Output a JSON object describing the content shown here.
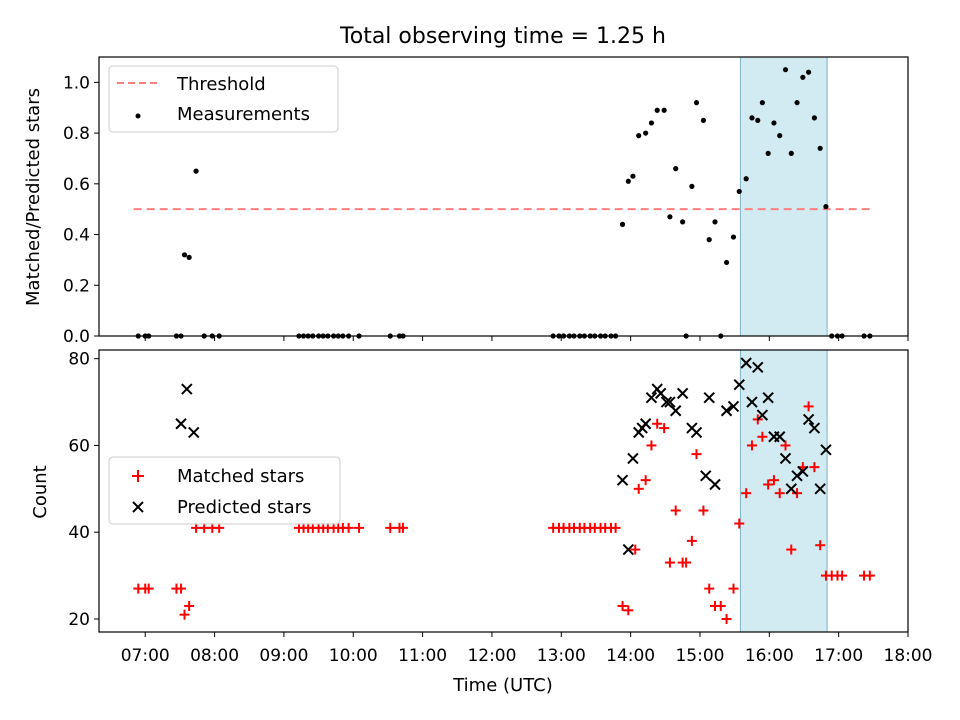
{
  "figure_title": "Total observing time = 1.25 h",
  "colors": {
    "threshold": "#ff7f7f",
    "measurements": "#000000",
    "matched": "#ff0000",
    "predicted": "#000000",
    "shade": "#add8e6"
  },
  "chart_data": [
    {
      "type": "scatter",
      "ylabel": "Matched/Predicted stars",
      "xlim": [
        "06:20",
        "18:00"
      ],
      "ylim": [
        0,
        1.1
      ],
      "yticks": [
        "0.0",
        "0.2",
        "0.4",
        "0.6",
        "0.8",
        "1.0"
      ],
      "ytick_values": [
        0,
        0.2,
        0.4,
        0.6,
        0.8,
        1.0
      ],
      "shaded_region": [
        "15:35",
        "16:50"
      ],
      "legend": {
        "placement": "top-left",
        "entries": [
          "Threshold",
          "Measurements"
        ]
      },
      "threshold": {
        "name": "Threshold",
        "value": 0.5,
        "x": [
          "06:50",
          "17:30"
        ]
      },
      "series": [
        {
          "name": "Measurements",
          "points": [
            [
              "06:54",
              0
            ],
            [
              "07:00",
              0
            ],
            [
              "07:03",
              0
            ],
            [
              "07:27",
              0
            ],
            [
              "07:31",
              0
            ],
            [
              "07:34",
              0.32
            ],
            [
              "07:38",
              0.31
            ],
            [
              "07:44",
              0.65
            ],
            [
              "07:51",
              0
            ],
            [
              "07:58",
              0
            ],
            [
              "08:04",
              0
            ],
            [
              "09:13",
              0
            ],
            [
              "09:17",
              0
            ],
            [
              "09:21",
              0
            ],
            [
              "09:25",
              0
            ],
            [
              "09:30",
              0
            ],
            [
              "09:34",
              0
            ],
            [
              "09:38",
              0
            ],
            [
              "09:43",
              0
            ],
            [
              "09:47",
              0
            ],
            [
              "09:51",
              0
            ],
            [
              "09:56",
              0
            ],
            [
              "10:05",
              0
            ],
            [
              "10:32",
              0
            ],
            [
              "10:40",
              0
            ],
            [
              "10:43",
              0
            ],
            [
              "12:53",
              0
            ],
            [
              "12:58",
              0
            ],
            [
              "13:02",
              0
            ],
            [
              "13:07",
              0
            ],
            [
              "13:11",
              0
            ],
            [
              "13:16",
              0
            ],
            [
              "13:20",
              0
            ],
            [
              "13:25",
              0
            ],
            [
              "13:29",
              0
            ],
            [
              "13:34",
              0
            ],
            [
              "13:38",
              0
            ],
            [
              "13:43",
              0
            ],
            [
              "13:47",
              0
            ],
            [
              "13:53",
              0.44
            ],
            [
              "13:58",
              0.61
            ],
            [
              "14:02",
              0.63
            ],
            [
              "14:07",
              0.79
            ],
            [
              "14:13",
              0.8
            ],
            [
              "14:18",
              0.84
            ],
            [
              "14:23",
              0.89
            ],
            [
              "14:29",
              0.89
            ],
            [
              "14:34",
              0.47
            ],
            [
              "14:39",
              0.66
            ],
            [
              "14:45",
              0.45
            ],
            [
              "14:48",
              0
            ],
            [
              "14:53",
              0.59
            ],
            [
              "14:57",
              0.92
            ],
            [
              "15:03",
              0.85
            ],
            [
              "15:08",
              0.38
            ],
            [
              "15:13",
              0.45
            ],
            [
              "15:18",
              0
            ],
            [
              "15:23",
              0.29
            ],
            [
              "15:29",
              0.39
            ],
            [
              "15:34",
              0.57
            ],
            [
              "15:40",
              0.62
            ],
            [
              "15:45",
              0.86
            ],
            [
              "15:50",
              0.85
            ],
            [
              "15:54",
              0.92
            ],
            [
              "15:59",
              0.72
            ],
            [
              "16:04",
              0.84
            ],
            [
              "16:09",
              0.79
            ],
            [
              "16:14",
              1.05
            ],
            [
              "16:19",
              0.72
            ],
            [
              "16:24",
              0.92
            ],
            [
              "16:29",
              1.02
            ],
            [
              "16:34",
              1.04
            ],
            [
              "16:39",
              0.86
            ],
            [
              "16:44",
              0.74
            ],
            [
              "16:49",
              0.51
            ],
            [
              "16:54",
              0
            ],
            [
              "16:59",
              0
            ],
            [
              "17:03",
              0
            ],
            [
              "17:22",
              0
            ],
            [
              "17:27",
              0
            ]
          ]
        }
      ]
    },
    {
      "type": "scatter",
      "title": "",
      "xlabel": "Time (UTC)",
      "ylabel": "Count",
      "xlim": [
        "06:20",
        "18:00"
      ],
      "ylim": [
        17,
        82
      ],
      "xticks": [
        "07:00",
        "08:00",
        "09:00",
        "10:00",
        "11:00",
        "12:00",
        "13:00",
        "14:00",
        "15:00",
        "16:00",
        "17:00",
        "18:00"
      ],
      "yticks": [
        "20",
        "40",
        "60",
        "80"
      ],
      "ytick_values": [
        20,
        40,
        60,
        80
      ],
      "shaded_region": [
        "15:35",
        "16:50"
      ],
      "legend": {
        "placement": "center-left",
        "entries": [
          "Matched stars",
          "Predicted stars"
        ]
      },
      "series": [
        {
          "name": "Matched stars",
          "marker": "plus",
          "points": [
            [
              "06:54",
              27
            ],
            [
              "07:00",
              27
            ],
            [
              "07:03",
              27
            ],
            [
              "07:27",
              27
            ],
            [
              "07:31",
              27
            ],
            [
              "07:34",
              21
            ],
            [
              "07:38",
              23
            ],
            [
              "07:44",
              41
            ],
            [
              "07:51",
              41
            ],
            [
              "07:58",
              41
            ],
            [
              "08:04",
              41
            ],
            [
              "09:13",
              41
            ],
            [
              "09:17",
              41
            ],
            [
              "09:21",
              41
            ],
            [
              "09:25",
              41
            ],
            [
              "09:30",
              41
            ],
            [
              "09:34",
              41
            ],
            [
              "09:38",
              41
            ],
            [
              "09:43",
              41
            ],
            [
              "09:47",
              41
            ],
            [
              "09:51",
              41
            ],
            [
              "09:56",
              41
            ],
            [
              "10:05",
              41
            ],
            [
              "10:32",
              41
            ],
            [
              "10:40",
              41
            ],
            [
              "10:43",
              41
            ],
            [
              "12:53",
              41
            ],
            [
              "12:58",
              41
            ],
            [
              "13:02",
              41
            ],
            [
              "13:07",
              41
            ],
            [
              "13:11",
              41
            ],
            [
              "13:16",
              41
            ],
            [
              "13:20",
              41
            ],
            [
              "13:25",
              41
            ],
            [
              "13:29",
              41
            ],
            [
              "13:34",
              41
            ],
            [
              "13:38",
              41
            ],
            [
              "13:43",
              41
            ],
            [
              "13:47",
              41
            ],
            [
              "13:53",
              23
            ],
            [
              "13:58",
              22
            ],
            [
              "14:04",
              36
            ],
            [
              "14:07",
              50
            ],
            [
              "14:13",
              52
            ],
            [
              "14:18",
              60
            ],
            [
              "14:23",
              65
            ],
            [
              "14:29",
              64
            ],
            [
              "14:34",
              33
            ],
            [
              "14:39",
              45
            ],
            [
              "14:45",
              33
            ],
            [
              "14:48",
              33
            ],
            [
              "14:53",
              38
            ],
            [
              "14:57",
              58
            ],
            [
              "15:03",
              45
            ],
            [
              "15:08",
              27
            ],
            [
              "15:13",
              23
            ],
            [
              "15:18",
              23
            ],
            [
              "15:23",
              20
            ],
            [
              "15:29",
              27
            ],
            [
              "15:34",
              42
            ],
            [
              "15:40",
              49
            ],
            [
              "15:45",
              60
            ],
            [
              "15:50",
              66
            ],
            [
              "15:54",
              62
            ],
            [
              "15:59",
              51
            ],
            [
              "16:04",
              52
            ],
            [
              "16:09",
              49
            ],
            [
              "16:14",
              60
            ],
            [
              "16:19",
              36
            ],
            [
              "16:24",
              49
            ],
            [
              "16:29",
              55
            ],
            [
              "16:34",
              69
            ],
            [
              "16:39",
              55
            ],
            [
              "16:44",
              37
            ],
            [
              "16:49",
              30
            ],
            [
              "16:54",
              30
            ],
            [
              "16:59",
              30
            ],
            [
              "17:03",
              30
            ],
            [
              "17:22",
              30
            ],
            [
              "17:27",
              30
            ]
          ]
        },
        {
          "name": "Predicted stars",
          "marker": "x",
          "points": [
            [
              "07:31",
              65
            ],
            [
              "07:36",
              73
            ],
            [
              "07:42",
              63
            ],
            [
              "13:53",
              52
            ],
            [
              "13:58",
              36
            ],
            [
              "14:02",
              57
            ],
            [
              "14:07",
              63
            ],
            [
              "14:10",
              64
            ],
            [
              "14:13",
              65
            ],
            [
              "14:18",
              71
            ],
            [
              "14:23",
              73
            ],
            [
              "14:26",
              72
            ],
            [
              "14:31",
              70
            ],
            [
              "14:34",
              70
            ],
            [
              "14:39",
              68
            ],
            [
              "14:45",
              72
            ],
            [
              "14:53",
              64
            ],
            [
              "14:57",
              63
            ],
            [
              "15:05",
              53
            ],
            [
              "15:08",
              71
            ],
            [
              "15:13",
              51
            ],
            [
              "15:23",
              68
            ],
            [
              "15:29",
              69
            ],
            [
              "15:34",
              74
            ],
            [
              "15:40",
              79
            ],
            [
              "15:45",
              70
            ],
            [
              "15:50",
              78
            ],
            [
              "15:54",
              67
            ],
            [
              "15:59",
              71
            ],
            [
              "16:04",
              62
            ],
            [
              "16:09",
              62
            ],
            [
              "16:14",
              57
            ],
            [
              "16:19",
              50
            ],
            [
              "16:24",
              53
            ],
            [
              "16:29",
              54
            ],
            [
              "16:34",
              66
            ],
            [
              "16:39",
              64
            ],
            [
              "16:44",
              50
            ],
            [
              "16:49",
              59
            ]
          ]
        }
      ]
    }
  ]
}
